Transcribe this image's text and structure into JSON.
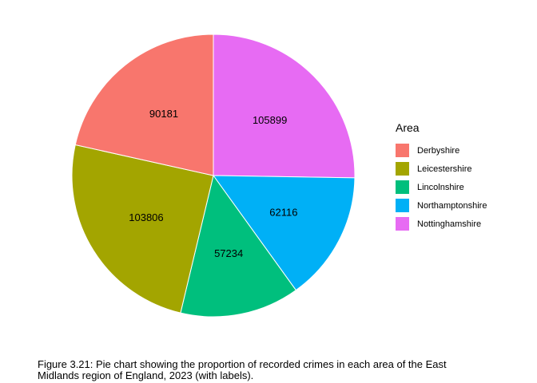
{
  "chart_data": {
    "type": "pie",
    "legend_title": "Area",
    "legend_position": "right",
    "slices": [
      {
        "label": "Derbyshire",
        "value": 90181,
        "color": "#F8766D"
      },
      {
        "label": "Leicestershire",
        "value": 103806,
        "color": "#A3A500"
      },
      {
        "label": "Lincolnshire",
        "value": 57234,
        "color": "#00BF7D"
      },
      {
        "label": "Northamptonshire",
        "value": 62116,
        "color": "#00B0F6"
      },
      {
        "label": "Nottinghamshire",
        "value": 105899,
        "color": "#E76BF3"
      }
    ]
  },
  "caption": "Figure 3.21: Pie chart showing the proportion of recorded crimes in each area of the East Midlands region of England, 2023 (with labels)."
}
